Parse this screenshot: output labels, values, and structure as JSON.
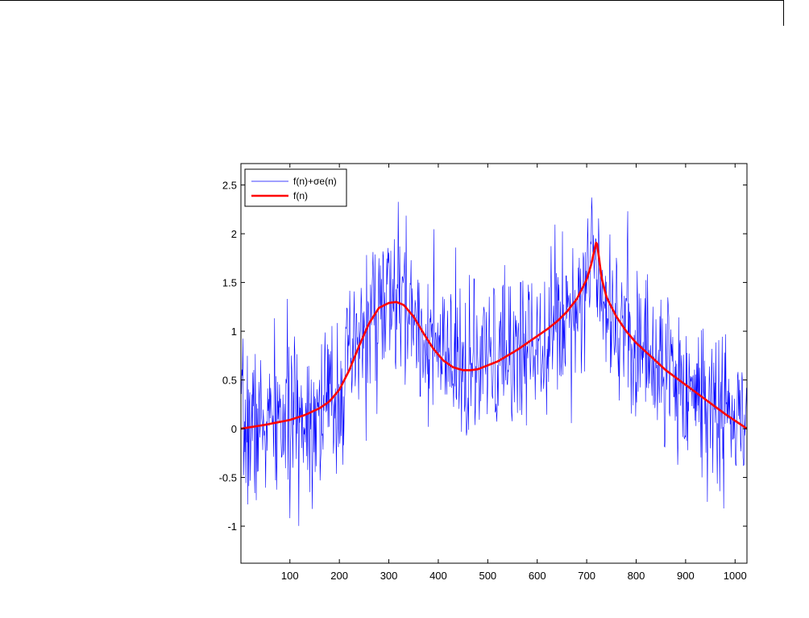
{
  "chart_data": {
    "type": "line",
    "title": "",
    "xlabel": "",
    "ylabel": "",
    "xlim": [
      1,
      1024
    ],
    "ylim": [
      -1.38,
      2.72
    ],
    "grid": false,
    "legend_position": "top-left",
    "x_ticks": [
      100,
      200,
      300,
      400,
      500,
      600,
      700,
      800,
      900,
      1000
    ],
    "x_tick_labels": [
      "100",
      "200",
      "300",
      "400",
      "500",
      "600",
      "700",
      "800",
      "900",
      "1000"
    ],
    "y_ticks": [
      -1,
      -0.5,
      0,
      0.5,
      1,
      1.5,
      2,
      2.5
    ],
    "y_tick_labels": [
      "-1",
      "-0.5",
      "0",
      "0.5",
      "1",
      "1.5",
      "2",
      "2.5"
    ],
    "series": [
      {
        "name": "f(n)+σe(n)",
        "color": "#0000ff",
        "line_width": "thin",
        "noise_sigma": 0.4,
        "noise_seed": 7
      },
      {
        "name": "f(n)",
        "color": "#ff0000",
        "line_width": "thick",
        "x": [
          1,
          50,
          100,
          130,
          160,
          180,
          200,
          220,
          240,
          260,
          280,
          300,
          315,
          330,
          350,
          370,
          390,
          410,
          430,
          450,
          465,
          480,
          500,
          520,
          540,
          560,
          580,
          600,
          620,
          640,
          660,
          680,
          690,
          700,
          710,
          715,
          720,
          725,
          730,
          740,
          760,
          780,
          800,
          830,
          860,
          900,
          940,
          980,
          1024
        ],
        "y": [
          0.0,
          0.04,
          0.09,
          0.14,
          0.21,
          0.28,
          0.4,
          0.6,
          0.85,
          1.08,
          1.24,
          1.29,
          1.3,
          1.27,
          1.15,
          0.98,
          0.82,
          0.7,
          0.63,
          0.6,
          0.6,
          0.61,
          0.65,
          0.69,
          0.75,
          0.81,
          0.88,
          0.95,
          1.02,
          1.1,
          1.2,
          1.33,
          1.43,
          1.53,
          1.7,
          1.82,
          1.93,
          1.75,
          1.55,
          1.35,
          1.15,
          1.0,
          0.88,
          0.74,
          0.6,
          0.45,
          0.3,
          0.15,
          0.0
        ]
      }
    ]
  }
}
